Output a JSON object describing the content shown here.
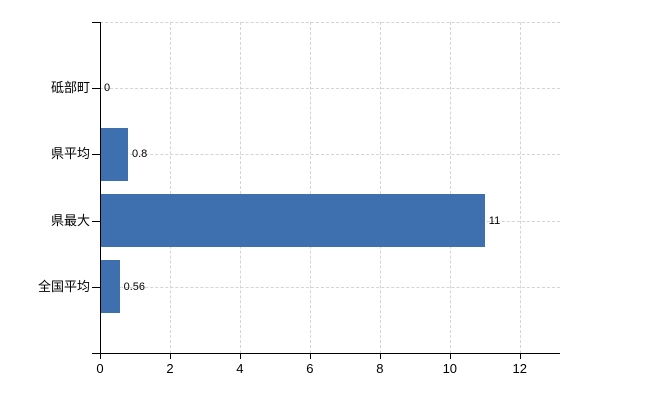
{
  "chart_data": {
    "type": "bar",
    "orientation": "horizontal",
    "title": "",
    "xlabel": "",
    "ylabel": "",
    "categories": [
      "砥部町",
      "県平均",
      "県最大",
      "全国平均"
    ],
    "values": [
      0,
      0.8,
      11,
      0.56
    ],
    "value_labels": [
      "0",
      "0.8",
      "11",
      "0.56"
    ],
    "xlim": [
      0,
      13.15
    ],
    "xticks": [
      0,
      2,
      4,
      6,
      8,
      10,
      12
    ],
    "xtick_labels": [
      "0",
      "2",
      "4",
      "6",
      "8",
      "10",
      "12"
    ],
    "grid": "dashed",
    "grid_on": true,
    "legend": "none",
    "colors": {
      "bar": "#3e6fae",
      "grid": "#d4d4d4",
      "axis": "#000000",
      "text": "#000000",
      "background": "#ffffff"
    }
  }
}
